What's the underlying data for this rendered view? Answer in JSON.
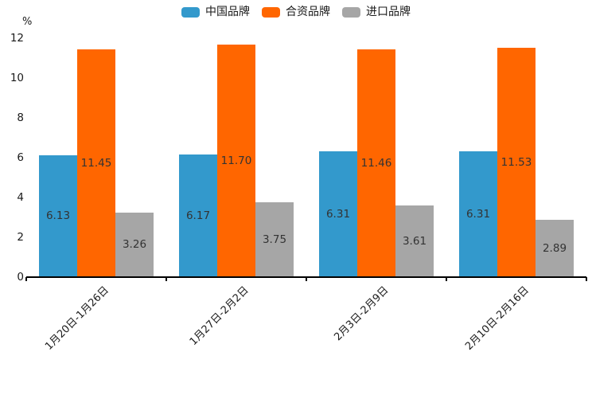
{
  "chart_data": {
    "type": "bar",
    "title": "",
    "unit_label": "%",
    "categories": [
      "1月20日-1月26日",
      "1月27日-2月2日",
      "2月3日-2月9日",
      "2月10日-2月16日"
    ],
    "series": [
      {
        "name": "中国品牌",
        "color": "#3399cc",
        "values": [
          6.13,
          6.17,
          6.31,
          6.31
        ]
      },
      {
        "name": "合资品牌",
        "color": "#ff6600",
        "values": [
          11.45,
          11.7,
          11.46,
          11.53
        ]
      },
      {
        "name": "进口品牌",
        "color": "#a6a6a6",
        "values": [
          3.26,
          3.75,
          3.61,
          2.89
        ]
      }
    ],
    "y_ticks": [
      0,
      2,
      4,
      6,
      8,
      10,
      12
    ],
    "ylim": [
      0,
      12
    ],
    "legend_position": "top",
    "grid": false,
    "value_label_decimals": 2
  }
}
